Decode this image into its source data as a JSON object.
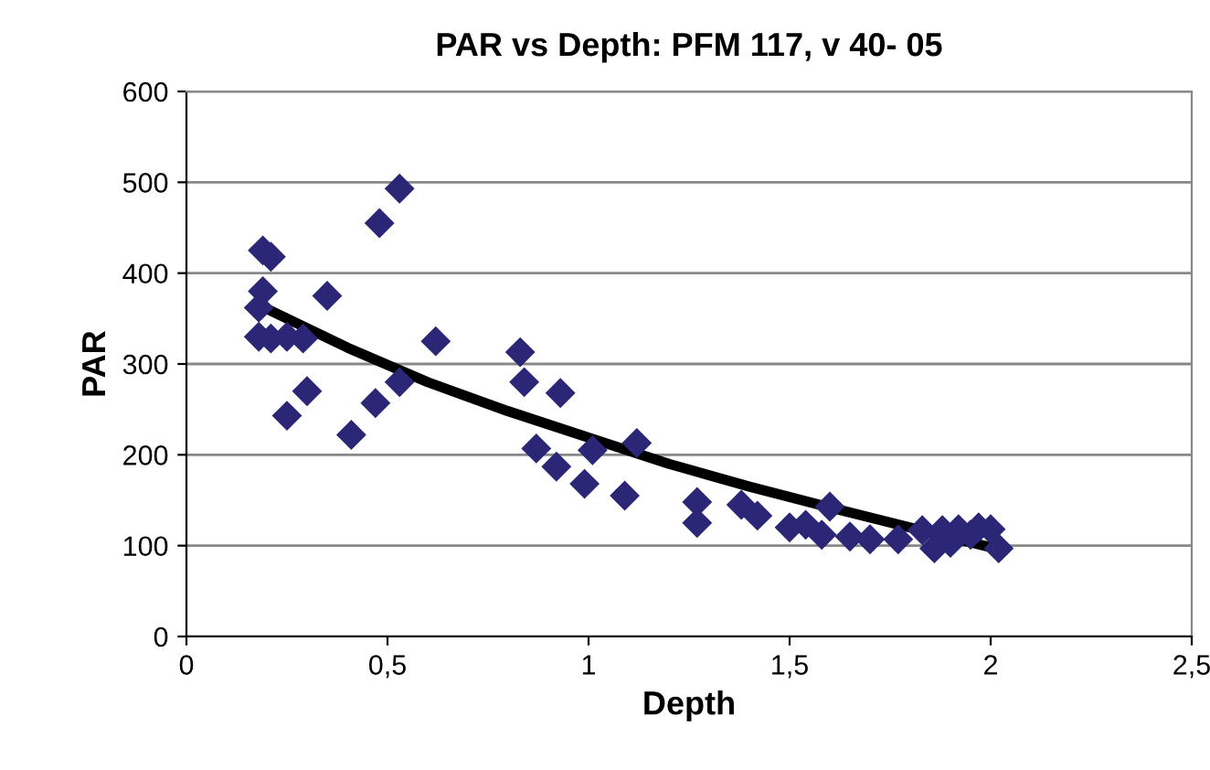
{
  "chart_data": {
    "type": "scatter",
    "title": "PAR vs Depth: PFM 117, v 40- 05",
    "xlabel": "Depth",
    "ylabel": "PAR",
    "xlim": [
      0,
      2.5
    ],
    "xticks": [
      0,
      {
        "value": 0.5,
        "label": "0,5"
      },
      1,
      {
        "value": 1.5,
        "label": "1,5"
      },
      2,
      {
        "value": 2.5,
        "label": "2,5"
      }
    ],
    "ylim": [
      0,
      600
    ],
    "yticks": [
      0,
      100,
      200,
      300,
      400,
      500,
      600
    ],
    "grid": "y",
    "legend": false,
    "marker": "diamond",
    "series": [
      {
        "color": "#2b2676",
        "x": [
          0.19,
          0.21,
          0.19,
          0.18,
          0.18,
          0.21,
          0.25,
          0.29,
          0.35,
          0.3,
          0.25,
          0.41,
          0.47,
          0.48,
          0.53,
          0.53,
          0.62,
          0.83,
          0.84,
          0.87,
          0.93,
          0.92,
          0.99,
          1.01,
          1.09,
          1.12,
          1.27,
          1.27,
          1.38,
          1.42,
          1.5,
          1.54,
          1.58,
          1.6,
          1.65,
          1.7,
          1.77,
          1.83,
          1.86,
          1.88,
          1.9,
          1.92,
          1.95,
          1.97,
          2.0,
          2.02
        ],
        "values": [
          425,
          418,
          380,
          362,
          330,
          328,
          330,
          328,
          375,
          270,
          243,
          222,
          257,
          455,
          493,
          280,
          325,
          313,
          280,
          207,
          268,
          187,
          168,
          205,
          155,
          213,
          148,
          125,
          145,
          133,
          120,
          123,
          112,
          143,
          110,
          107,
          107,
          117,
          97,
          117,
          103,
          118,
          112,
          120,
          118,
          97
        ]
      },
      {
        "type": "line",
        "color": "#000000",
        "marker": "none",
        "line_style": "solid",
        "x": [
          0.18,
          0.4,
          0.6,
          0.8,
          1.0,
          1.2,
          1.4,
          1.6,
          1.8,
          2.02
        ],
        "values": [
          365,
          318,
          280,
          248,
          219,
          190,
          165,
          142,
          120,
          96
        ]
      }
    ]
  }
}
